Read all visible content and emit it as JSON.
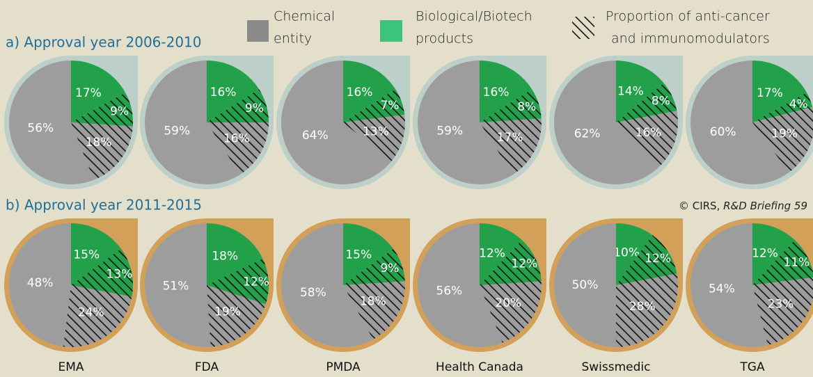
{
  "legend": [
    {
      "lines": [
        "Chemical",
        "entity"
      ],
      "color": "#8a8a8a"
    },
    {
      "lines": [
        "Biological/Biotech",
        "products"
      ],
      "color": "#3cc47a"
    },
    {
      "lines": [
        "Proportion of anti-cancer",
        "and immunomodulators"
      ]
    }
  ],
  "credit": {
    "prefix": "© CIRS, ",
    "italic": "R&D Briefing 59"
  },
  "agencies": [
    "EMA",
    "FDA",
    "PMDA",
    "Health Canada",
    "Swissmedic",
    "TGA"
  ],
  "chart_data": [
    {
      "type": "pie",
      "title": "a) Approval year 2006-2010",
      "ring_color": "#bccfc8",
      "slice_colors": [
        "#23a04a",
        "#23a04a",
        "#9d9d9d",
        "#9d9d9d"
      ],
      "hatched": [
        false,
        true,
        true,
        false
      ],
      "pies": [
        {
          "values": [
            17,
            9,
            18,
            56
          ],
          "value_labels": [
            "17%",
            "9%",
            "18%",
            "56%"
          ]
        },
        {
          "values": [
            16,
            9,
            16,
            59
          ],
          "value_labels": [
            "16%",
            "9%",
            "16%",
            "59%"
          ]
        },
        {
          "values": [
            16,
            7,
            13,
            64
          ],
          "value_labels": [
            "16%",
            "7%",
            "13%",
            "64%"
          ]
        },
        {
          "values": [
            16,
            8,
            17,
            59
          ],
          "value_labels": [
            "16%",
            "8%",
            "17%",
            "59%"
          ]
        },
        {
          "values": [
            14,
            8,
            16,
            62
          ],
          "value_labels": [
            "14%",
            "8%",
            "16%",
            "62%"
          ]
        },
        {
          "values": [
            17,
            4,
            19,
            60
          ],
          "value_labels": [
            "17%",
            "4%",
            "19%",
            "60%"
          ]
        }
      ]
    },
    {
      "type": "pie",
      "title": "b) Approval year 2011-2015",
      "ring_color": "#d3a05a",
      "slice_colors": [
        "#23a04a",
        "#23a04a",
        "#9d9d9d",
        "#9d9d9d"
      ],
      "hatched": [
        false,
        true,
        true,
        false
      ],
      "pies": [
        {
          "values": [
            15,
            13,
            24,
            48
          ],
          "value_labels": [
            "15%",
            "13%",
            "24%",
            "48%"
          ]
        },
        {
          "values": [
            18,
            12,
            19,
            51
          ],
          "value_labels": [
            "18%",
            "12%",
            "19%",
            "51%"
          ]
        },
        {
          "values": [
            15,
            9,
            18,
            58
          ],
          "value_labels": [
            "15%",
            "9%",
            "18%",
            "58%"
          ]
        },
        {
          "values": [
            12,
            12,
            20,
            56
          ],
          "value_labels": [
            "12%",
            "12%",
            "20%",
            "56%"
          ]
        },
        {
          "values": [
            10,
            12,
            28,
            50
          ],
          "value_labels": [
            "10%",
            "12%",
            "28%",
            "50%"
          ]
        },
        {
          "values": [
            12,
            11,
            23,
            54
          ],
          "value_labels": [
            "12%",
            "11%",
            "23%",
            "54%"
          ]
        }
      ]
    }
  ]
}
